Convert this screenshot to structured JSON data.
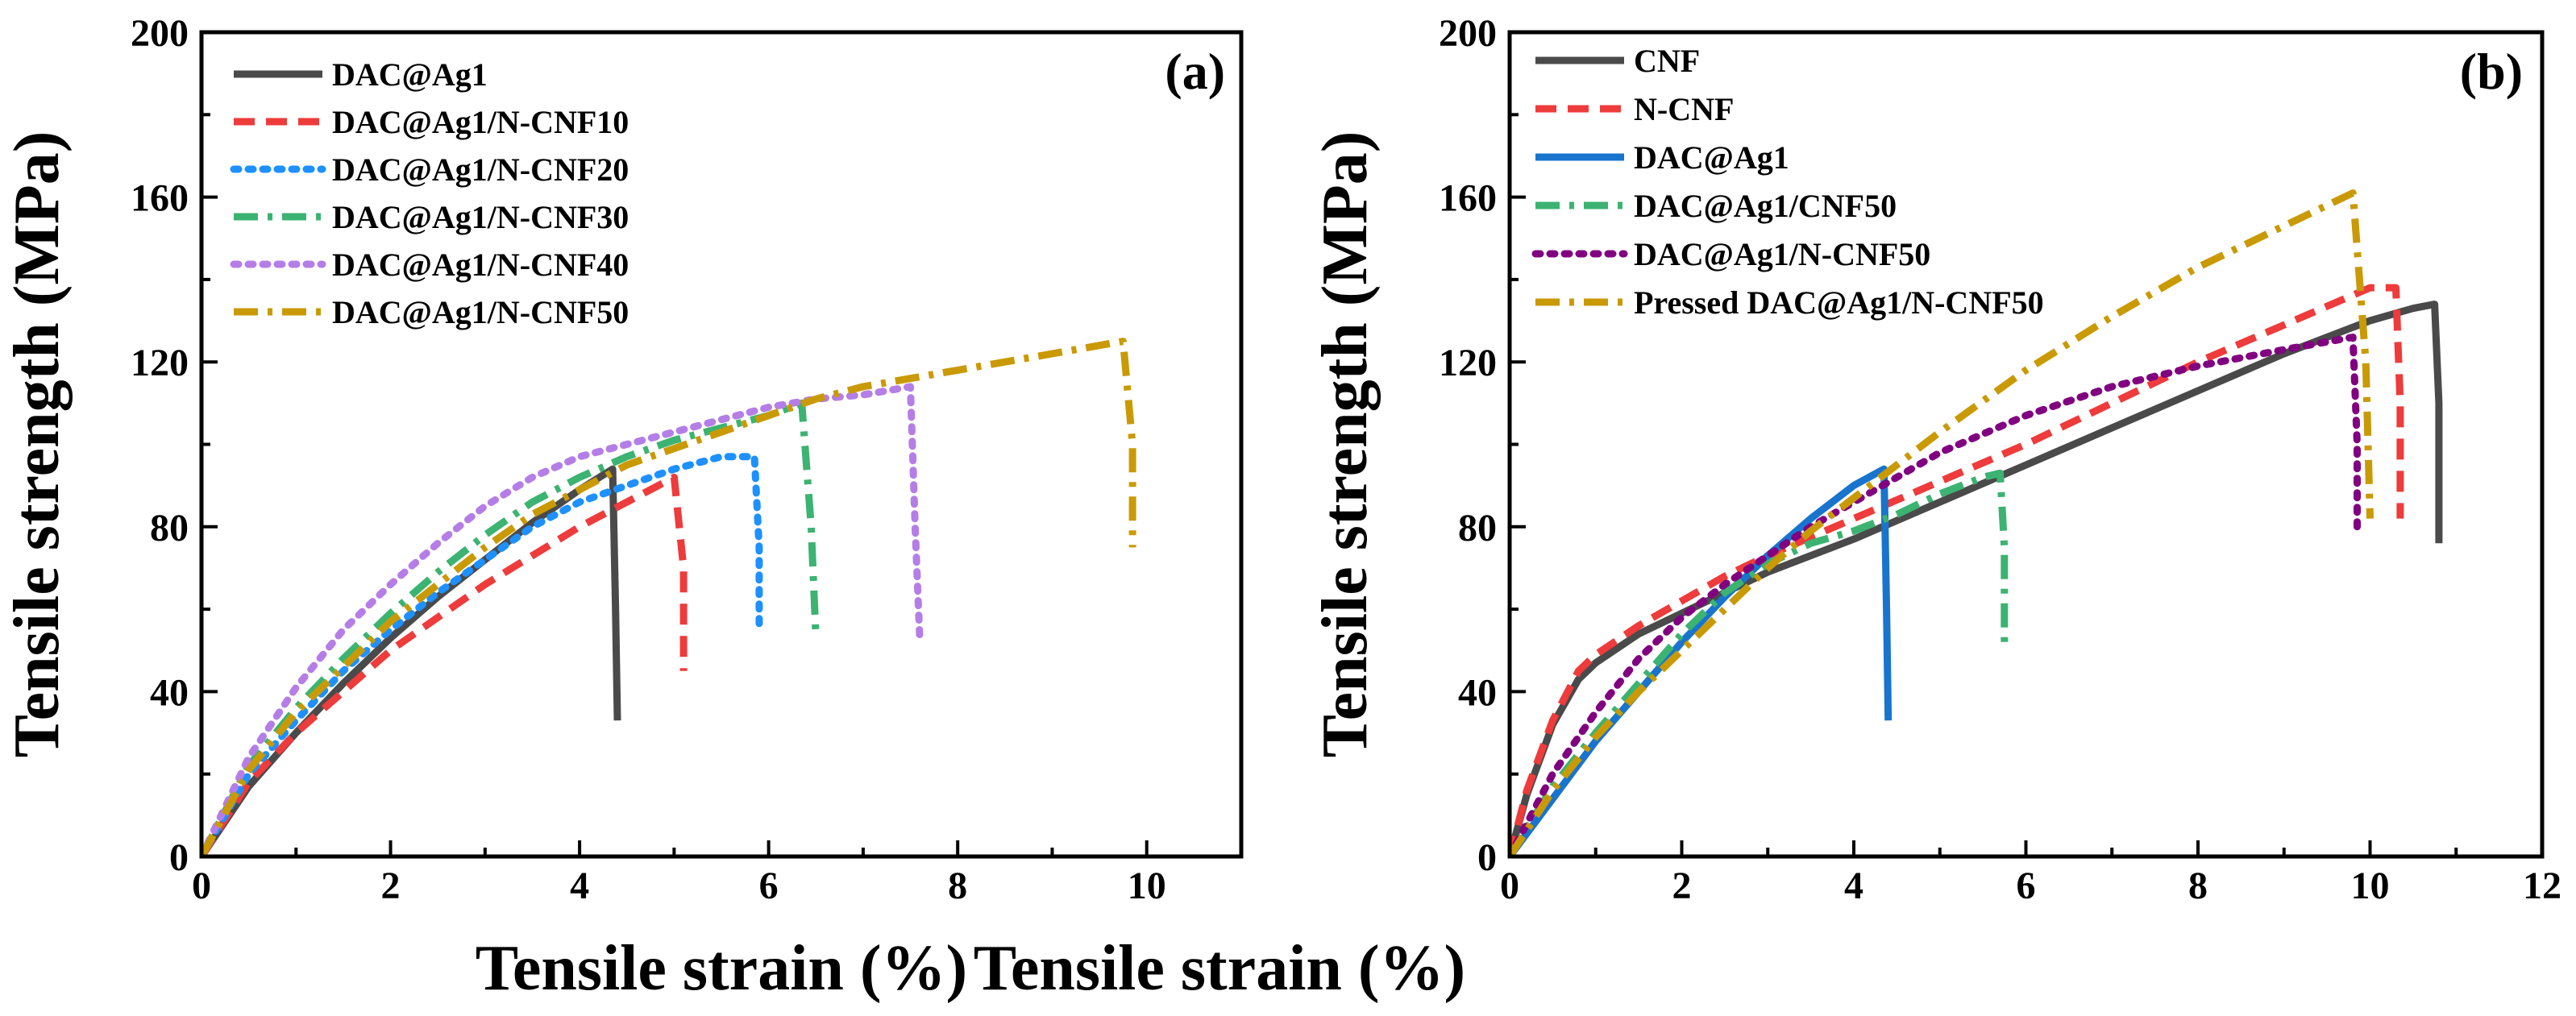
{
  "colors": {
    "dark_gray": "#4a4a4a",
    "red": "#ee3b3b",
    "blue": "#1874cd",
    "sky_blue": "#1e90ff",
    "green": "#3cb371",
    "lavender": "#b57ee6",
    "gold": "#c99a06",
    "purple": "#800080"
  },
  "chart_data": [
    {
      "type": "line",
      "panel_label": "(a)",
      "xlabel": "Tensile strain (%)",
      "ylabel": "Tensile strength (MPa)",
      "xlim": [
        0,
        11
      ],
      "ylim": [
        0,
        200
      ],
      "xticks": [
        0,
        2,
        4,
        6,
        8,
        10
      ],
      "yticks": [
        0,
        40,
        80,
        120,
        160,
        200
      ],
      "legend_position": "top-left",
      "series": [
        {
          "name": "DAC@Ag1",
          "color": "#4a4a4a",
          "dash": "solid",
          "x": [
            0,
            0.5,
            1,
            1.5,
            2,
            2.5,
            3,
            3.5,
            4,
            4.35,
            4.38,
            4.4
          ],
          "y": [
            0,
            17,
            30,
            42,
            53,
            63,
            72,
            81,
            89,
            94,
            60,
            33
          ]
        },
        {
          "name": "DAC@Ag1/N-CNF10",
          "color": "#ee3b3b",
          "dash": "dash",
          "x": [
            0,
            0.5,
            1,
            1.5,
            2,
            2.5,
            3,
            3.5,
            4,
            4.5,
            5.0,
            5.1,
            5.1
          ],
          "y": [
            0,
            18,
            30,
            40,
            50,
            58,
            66,
            73,
            80,
            86,
            92,
            70,
            45
          ]
        },
        {
          "name": "DAC@Ag1/N-CNF20",
          "color": "#1e90ff",
          "dash": "dot",
          "x": [
            0,
            0.5,
            1,
            1.5,
            2,
            2.5,
            3,
            3.5,
            4,
            4.5,
            5,
            5.5,
            5.85,
            5.9,
            5.9
          ],
          "y": [
            0,
            20,
            33,
            45,
            55,
            64,
            72,
            80,
            86,
            90,
            94,
            97,
            97,
            75,
            55
          ]
        },
        {
          "name": "DAC@Ag1/N-CNF30",
          "color": "#3cb371",
          "dash": "dashdot",
          "x": [
            0,
            0.5,
            1,
            1.5,
            2,
            2.5,
            3,
            3.5,
            4,
            4.5,
            5,
            5.5,
            6,
            6.35,
            6.45,
            6.5
          ],
          "y": [
            0,
            22,
            36,
            48,
            59,
            69,
            78,
            86,
            92,
            97,
            101,
            104,
            107,
            110,
            80,
            53
          ]
        },
        {
          "name": "DAC@Ag1/N-CNF40",
          "color": "#b57ee6",
          "dash": "dot",
          "x": [
            0,
            0.5,
            1,
            1.5,
            2,
            2.5,
            3,
            3.5,
            4,
            4.5,
            5,
            5.5,
            6,
            6.5,
            7,
            7.5,
            7.55,
            7.6
          ],
          "y": [
            0,
            24,
            41,
            55,
            66,
            76,
            85,
            92,
            97,
            100,
            103,
            106,
            109,
            111,
            112,
            114,
            80,
            52
          ]
        },
        {
          "name": "DAC@Ag1/N-CNF50",
          "color": "#c99a06",
          "dash": "dashdot",
          "x": [
            0,
            0.5,
            1,
            1.5,
            2,
            2.5,
            3,
            3.5,
            4,
            4.5,
            5,
            5.5,
            6,
            6.5,
            7,
            7.5,
            8,
            8.5,
            9,
            9.5,
            9.75,
            9.85,
            9.85
          ],
          "y": [
            0,
            21,
            35,
            46,
            57,
            66,
            75,
            83,
            89,
            95,
            99,
            103,
            107,
            111,
            114,
            116,
            118,
            120,
            122,
            124,
            125,
            100,
            75
          ]
        }
      ]
    },
    {
      "type": "line",
      "panel_label": "(b)",
      "xlabel": "Tensile strain (%)",
      "ylabel": "Tensile strength (MPa)",
      "xlim": [
        0,
        12
      ],
      "ylim": [
        0,
        200
      ],
      "xticks": [
        0,
        2,
        4,
        6,
        8,
        10,
        12
      ],
      "yticks": [
        0,
        40,
        80,
        120,
        160,
        200
      ],
      "legend_position": "top-left",
      "series": [
        {
          "name": "CNF",
          "color": "#4a4a4a",
          "dash": "solid",
          "x": [
            0,
            0.2,
            0.5,
            0.8,
            1,
            1.5,
            2,
            2.5,
            3,
            4,
            5,
            6,
            7,
            8,
            9,
            10,
            10.5,
            10.75,
            10.8,
            10.8
          ],
          "y": [
            0,
            15,
            32,
            43,
            47,
            54,
            59,
            64,
            69,
            77,
            86,
            95,
            104,
            113,
            122,
            130,
            133,
            134,
            110,
            76
          ]
        },
        {
          "name": "N-CNF",
          "color": "#ee3b3b",
          "dash": "dash",
          "x": [
            0,
            0.2,
            0.5,
            0.8,
            1,
            1.5,
            2,
            2.5,
            3,
            4,
            5,
            6,
            7,
            8,
            9,
            10,
            10.3,
            10.35,
            10.35
          ],
          "y": [
            0,
            16,
            33,
            45,
            49,
            56,
            62,
            68,
            73,
            82,
            91,
            100,
            110,
            120,
            129,
            138,
            138,
            110,
            82
          ]
        },
        {
          "name": "DAC@Ag1",
          "color": "#1874cd",
          "dash": "solid",
          "x": [
            0,
            0.5,
            1,
            1.5,
            2,
            2.5,
            3,
            3.5,
            4,
            4.35,
            4.38,
            4.4
          ],
          "y": [
            0,
            14,
            28,
            40,
            52,
            63,
            73,
            82,
            90,
            94,
            60,
            33
          ]
        },
        {
          "name": "DAC@Ag1/CNF50",
          "color": "#3cb371",
          "dash": "dashdot",
          "x": [
            0,
            0.5,
            1,
            1.5,
            2,
            2.5,
            3,
            3.5,
            4,
            4.5,
            5,
            5.5,
            5.7,
            5.75,
            5.75
          ],
          "y": [
            0,
            17,
            30,
            42,
            54,
            64,
            71,
            76,
            79,
            83,
            88,
            92,
            93,
            75,
            52
          ]
        },
        {
          "name": "DAC@Ag1/N-CNF50",
          "color": "#800080",
          "dash": "dot",
          "x": [
            0,
            0.5,
            1,
            1.5,
            2,
            2.5,
            3,
            3.5,
            4,
            4.5,
            5,
            6,
            7,
            8,
            9,
            9.8,
            9.85,
            9.85
          ],
          "y": [
            0,
            20,
            35,
            48,
            58,
            66,
            73,
            80,
            86,
            92,
            98,
            107,
            114,
            119,
            123,
            126,
            100,
            78
          ]
        },
        {
          "name": "Pressed DAC@Ag1/N-CNF50",
          "color": "#c99a06",
          "dash": "dashdot",
          "x": [
            0,
            0.5,
            1,
            1.5,
            2,
            2.5,
            3,
            3.5,
            4,
            4.5,
            5,
            6,
            7,
            8,
            9,
            9.8,
            9.95,
            10.0
          ],
          "y": [
            0,
            16,
            29,
            40,
            50,
            60,
            70,
            79,
            87,
            95,
            103,
            118,
            131,
            143,
            153,
            161,
            120,
            82
          ]
        }
      ]
    }
  ]
}
